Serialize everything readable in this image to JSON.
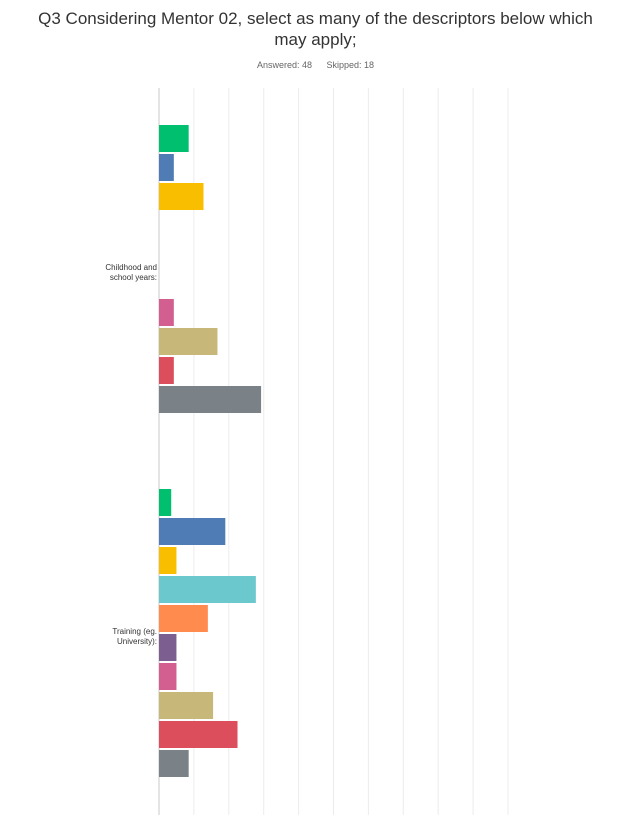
{
  "survey": {
    "question": "Q3 Considering Mentor 02, select as many of the descriptors below which may apply;",
    "answered": "Answered: 48",
    "skipped": "Skipped: 18"
  },
  "chart_data": {
    "type": "bar",
    "orientation": "horizontal",
    "grid": true,
    "xlim": [
      0,
      100
    ],
    "categories": [
      "Childhood and school years:",
      "Training (eg. University):"
    ],
    "colors": [
      "#00bf6f",
      "#507cb6",
      "#f9be00",
      "#6bc8cd",
      "#ff8b4f",
      "#7d5e90",
      "#d25f90",
      "#c7b879",
      "#dd4e5c",
      "#7a8187"
    ],
    "series": [
      {
        "values": [
          8.5,
          3.5
        ]
      },
      {
        "values": [
          4.25,
          19
        ]
      },
      {
        "values": [
          12.75,
          5
        ]
      },
      {
        "values": [
          0,
          27.75
        ]
      },
      {
        "values": [
          0,
          14
        ]
      },
      {
        "values": [
          0,
          5
        ]
      },
      {
        "values": [
          4.25,
          5
        ]
      },
      {
        "values": [
          16.75,
          15.5
        ]
      },
      {
        "values": [
          4.25,
          22.5
        ]
      },
      {
        "values": [
          29.25,
          8.5
        ]
      }
    ]
  }
}
